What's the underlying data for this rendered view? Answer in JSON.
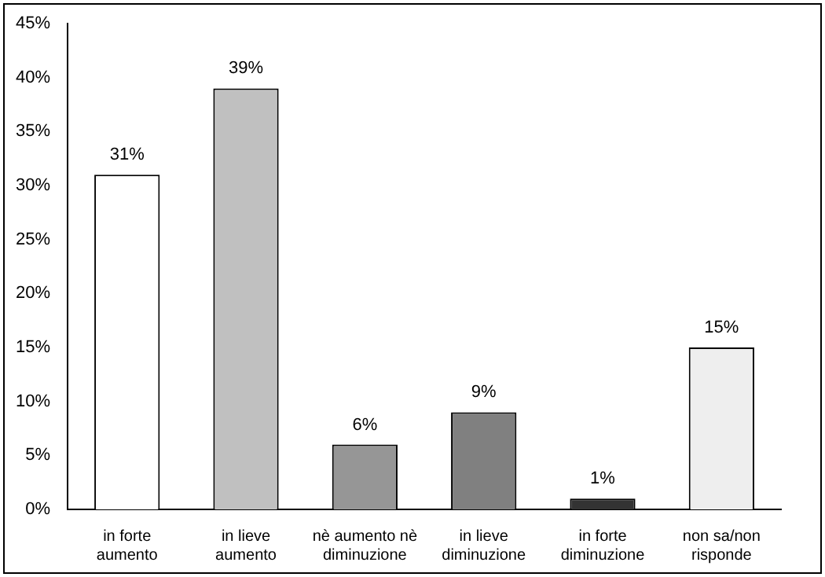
{
  "chart_data": {
    "type": "bar",
    "categories": [
      "in forte aumento",
      "in lieve aumento",
      "nè aumento nè diminuzione",
      "in lieve diminuzione",
      "in forte diminuzione",
      "non sa/non risponde"
    ],
    "values": [
      31,
      39,
      6,
      9,
      1,
      15
    ],
    "colors": [
      "#ffffff",
      "#c0c0c0",
      "#969696",
      "#808080",
      "#333333",
      "#eeeeee"
    ],
    "ylim": [
      0,
      45
    ],
    "yticks": [
      {
        "value": 0,
        "label": "0%"
      },
      {
        "value": 5,
        "label": "5%"
      },
      {
        "value": 10,
        "label": "10%"
      },
      {
        "value": 15,
        "label": "15%"
      },
      {
        "value": 20,
        "label": "20%"
      },
      {
        "value": 25,
        "label": "25%"
      },
      {
        "value": 30,
        "label": "30%"
      },
      {
        "value": 35,
        "label": "35%"
      },
      {
        "value": 40,
        "label": "40%"
      },
      {
        "value": 45,
        "label": "45%"
      }
    ],
    "value_labels": [
      "31%",
      "39%",
      "6%",
      "9%",
      "1%",
      "15%"
    ],
    "grid": false,
    "legend": false
  }
}
